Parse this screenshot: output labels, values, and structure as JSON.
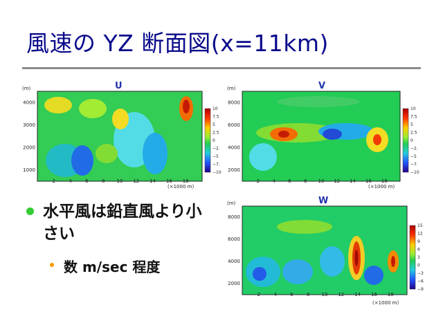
{
  "slide": {
    "title": "風速の YZ 断面図(x=11km)",
    "bullet": "水平風は鉛直風より小さい",
    "sub_bullet": "数 m/sec 程度"
  },
  "colors": {
    "title": "#0a0a8c",
    "bullet": "#33cc33",
    "sub_bullet": "#ff9900",
    "rule": "#8a8a8a"
  },
  "panels": [
    {
      "id": "U",
      "label": "U",
      "yunit": "(m)",
      "yticks": [
        "4000",
        "3000",
        "2000",
        "1000"
      ],
      "xticks": [
        "2",
        "4",
        "6",
        "8",
        "10",
        "12",
        "14",
        "16",
        "18"
      ],
      "xunit": "(×1000 m)",
      "cbar": [
        "10",
        "7.5",
        "5",
        "2.5",
        "0",
        "−2.",
        "−5",
        "−7.",
        "−10"
      ]
    },
    {
      "id": "V",
      "label": "V",
      "yunit": "(m)",
      "yticks": [
        "8000",
        "6000",
        "4000",
        "2000"
      ],
      "xticks": [
        "2",
        "4",
        "6",
        "8",
        "10",
        "12",
        "14",
        "16",
        "18"
      ],
      "xunit": "(×1000 m)",
      "cbar": [
        "10",
        "7.5",
        "5",
        "2.5",
        "0",
        "−2.",
        "−5",
        "−7.",
        "−10"
      ]
    },
    {
      "id": "W",
      "label": "W",
      "yunit": "(m)",
      "yticks": [
        "8000",
        "6000",
        "4000",
        "2000"
      ],
      "xticks": [
        "2",
        "4",
        "6",
        "8",
        "10",
        "12",
        "14",
        "16",
        "18"
      ],
      "xunit": "(×1000 m)",
      "cbar": [
        "15",
        "12",
        "9",
        "6",
        "3",
        "0",
        "−3",
        "−6",
        "−9"
      ]
    }
  ]
}
